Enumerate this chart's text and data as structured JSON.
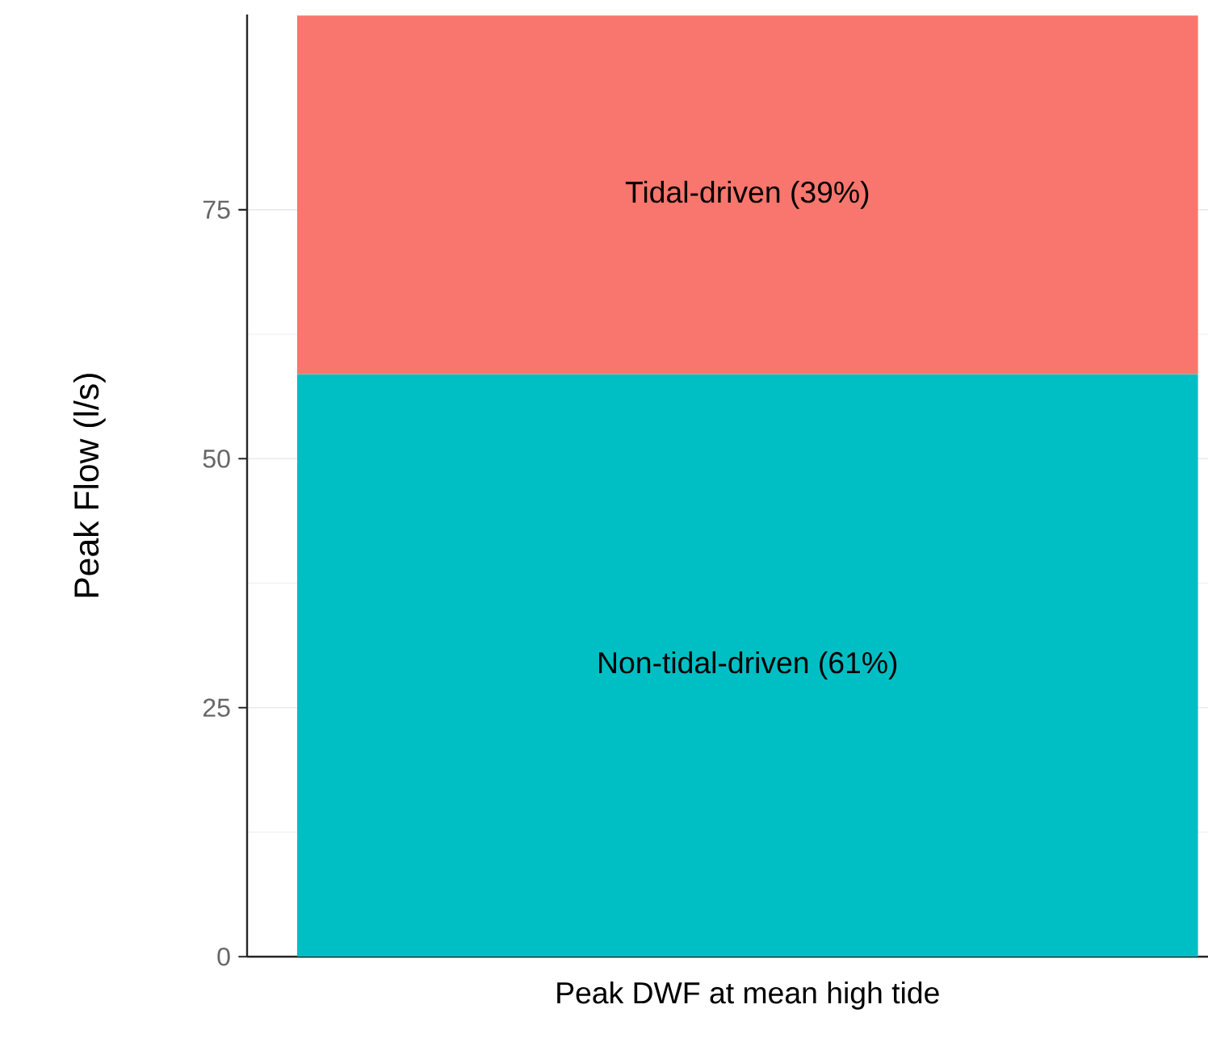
{
  "chart_data": {
    "type": "bar",
    "stacked": true,
    "ylabel": "Peak Flow (l/s)",
    "categories": [
      "Peak DWF at mean high tide"
    ],
    "series": [
      {
        "name": "Non-tidal-driven (61%)",
        "color": "#00bfc4",
        "values": [
          58.5
        ]
      },
      {
        "name": "Tidal-driven (39%)",
        "color": "#f8766d",
        "values": [
          36
        ]
      }
    ],
    "ylim": [
      0,
      94.6
    ],
    "yticks": [
      0,
      25,
      50,
      75
    ],
    "grid": "y"
  }
}
